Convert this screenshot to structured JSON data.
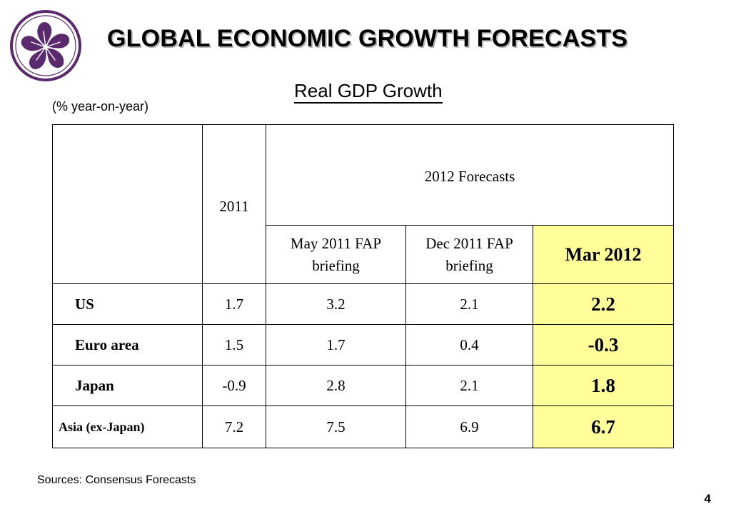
{
  "header": {
    "title": "GLOBAL ECONOMIC GROWTH FORECASTS",
    "subtitle": "Real GDP Growth",
    "unit_note": "(% year-on-year)"
  },
  "table": {
    "headers": {
      "country": "",
      "year_2011": "2011",
      "forecasts_group": "2012 Forecasts",
      "may_2011": [
        "May 2011 FAP",
        "briefing"
      ],
      "dec_2011": [
        "Dec 2011 FAP",
        "briefing"
      ],
      "mar_2012": "Mar 2012"
    },
    "rows": [
      {
        "country": "US",
        "y2011": "1.7",
        "may2011": "3.2",
        "dec2011": "2.1",
        "mar2012": "2.2"
      },
      {
        "country": "Euro area",
        "y2011": "1.5",
        "may2011": "1.7",
        "dec2011": "0.4",
        "mar2012": "-0.3"
      },
      {
        "country": "Japan",
        "y2011": "-0.9",
        "may2011": "2.8",
        "dec2011": "2.1",
        "mar2012": "1.8"
      },
      {
        "country": "Asia (ex-Japan)",
        "y2011": "7.2",
        "may2011": "7.5",
        "dec2011": "6.9",
        "mar2012": "6.7"
      }
    ],
    "highlight_color": "#ffff99"
  },
  "footer": {
    "sources": "Sources: Consensus Forecasts",
    "page_number": "4"
  },
  "logo": {
    "icon": "bauhinia-flower-icon",
    "color": "#5b2a6e"
  }
}
